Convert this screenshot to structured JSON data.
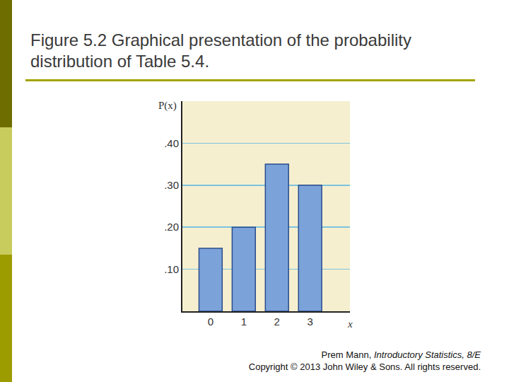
{
  "chart_data": {
    "type": "bar",
    "title": "Figure 5.2 Graphical presentation of the probability distribution of Table 5.4.",
    "xlabel": "x",
    "ylabel": "P(x)",
    "x": [
      0,
      1,
      2,
      3
    ],
    "values": [
      0.15,
      0.2,
      0.35,
      0.3
    ],
    "color": "#7ba3d9",
    "xlim": [
      -0.85,
      4.2
    ],
    "xticks": [
      0,
      1,
      2,
      3
    ],
    "ylim": [
      0,
      0.5
    ],
    "yticks": [
      {
        "value": 0.1,
        "label": ".10"
      },
      {
        "value": 0.2,
        "label": ".20"
      },
      {
        "value": 0.3,
        "label": ".30"
      },
      {
        "value": 0.4,
        "label": ".40"
      }
    ],
    "grid": true
  },
  "credit": [
    [
      "Prem Mann, ",
      "Introductory Statistics, 8/E"
    ],
    [
      "Copyright © 2013 John Wiley & Sons. All rights reserved."
    ]
  ]
}
